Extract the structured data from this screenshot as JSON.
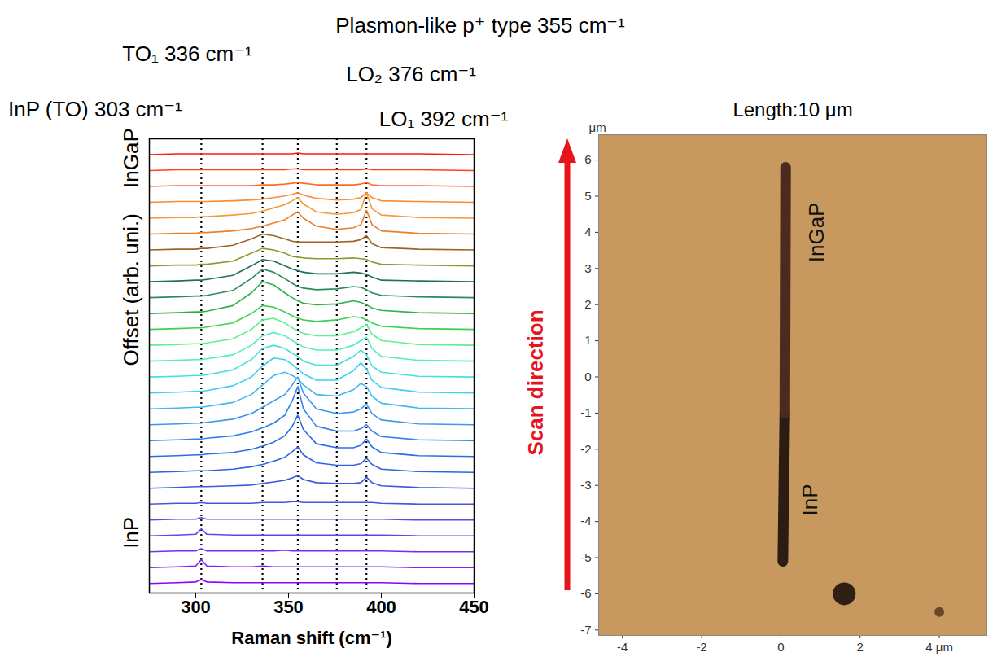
{
  "chart_data": [
    {
      "type": "line",
      "xlabel": "Raman shift (cm⁻¹)",
      "ylabel": "Offset (arb. uni.)",
      "xlim": [
        275,
        450
      ],
      "xticks": [
        300,
        350,
        400,
        450
      ],
      "ylim": [
        -0.6,
        28
      ],
      "tick_labels": "x",
      "annotations": [
        {
          "text": "Plasmon-like p⁺ type 355 cm⁻¹",
          "x": 355
        },
        {
          "text": "TO₁ 336 cm⁻¹",
          "x": 336
        },
        {
          "text": "LO₂ 376 cm⁻¹",
          "x": 376
        },
        {
          "text": "InP (TO) 303 cm⁻¹",
          "x": 303
        },
        {
          "text": "LO₁ 392 cm⁻¹",
          "x": 392
        }
      ],
      "labels": [
        {
          "text": "InP",
          "y": 2.2
        },
        {
          "text": "InGaP",
          "y": 24.9
        }
      ],
      "x": [
        275,
        290,
        300,
        303,
        306,
        320,
        330,
        336,
        342,
        348,
        352,
        355,
        358,
        365,
        376,
        385,
        389,
        392,
        395,
        400,
        420,
        450
      ],
      "series": [
        {
          "color": "#8f00ff",
          "values": [
            0,
            0.05,
            0.1,
            0.25,
            0.1,
            0.05,
            0.05,
            0.05,
            0.05,
            0.05,
            0.05,
            0.05,
            0.05,
            0.05,
            0.05,
            0.05,
            0.05,
            0.05,
            0.05,
            0.05,
            0,
            0
          ]
        },
        {
          "color": "#7f1fff",
          "values": [
            1,
            1.05,
            1.1,
            1.5,
            1.1,
            1.05,
            1.05,
            1.1,
            1.05,
            1.05,
            1.05,
            1.05,
            1.05,
            1.05,
            1.05,
            1.05,
            1.05,
            1.05,
            1.05,
            1.05,
            1,
            1
          ]
        },
        {
          "color": "#7030f0",
          "values": [
            2,
            2.05,
            2.05,
            2.2,
            2.05,
            2.05,
            2.05,
            2.05,
            2.05,
            2.1,
            2.05,
            2.05,
            2.05,
            2.05,
            2.05,
            2.05,
            2.05,
            2.05,
            2.05,
            2.05,
            2,
            2
          ]
        },
        {
          "color": "#6a3ff0",
          "values": [
            3,
            3.05,
            3.1,
            3.45,
            3.1,
            3.05,
            3.05,
            3.05,
            3.05,
            3.05,
            3.05,
            3.05,
            3.05,
            3.05,
            3.05,
            3.05,
            3.05,
            3.05,
            3.05,
            3.05,
            3,
            3
          ]
        },
        {
          "color": "#5a48e8",
          "values": [
            4,
            4.05,
            4.05,
            4.15,
            4.05,
            4.05,
            4.05,
            4.05,
            4.05,
            4.05,
            4.05,
            4.05,
            4.05,
            4.05,
            4.05,
            4.05,
            4.05,
            4.05,
            4.05,
            4.05,
            4,
            4
          ]
        },
        {
          "color": "#4a50e0",
          "values": [
            5,
            5.05,
            5.05,
            5.1,
            5.05,
            5.05,
            5.05,
            5.1,
            5.1,
            5.1,
            5.15,
            5.15,
            5.1,
            5.1,
            5.1,
            5.1,
            5.1,
            5.1,
            5.1,
            5.05,
            5,
            5
          ]
        },
        {
          "color": "#3a58e0",
          "values": [
            6,
            6.05,
            6.1,
            6.1,
            6.1,
            6.15,
            6.2,
            6.3,
            6.4,
            6.5,
            6.65,
            6.8,
            6.55,
            6.35,
            6.3,
            6.3,
            6.35,
            6.7,
            6.35,
            6.15,
            6.05,
            6
          ]
        },
        {
          "color": "#2f62e6",
          "values": [
            7,
            7.05,
            7.1,
            7.1,
            7.1,
            7.2,
            7.35,
            7.5,
            7.7,
            7.95,
            8.3,
            8.6,
            8.1,
            7.6,
            7.45,
            7.45,
            7.55,
            7.9,
            7.5,
            7.2,
            7.05,
            7
          ]
        },
        {
          "color": "#2a6cea",
          "values": [
            8,
            8.05,
            8.1,
            8.1,
            8.15,
            8.25,
            8.45,
            8.65,
            8.9,
            9.3,
            9.9,
            10.6,
            9.7,
            8.8,
            8.55,
            8.55,
            8.7,
            9.1,
            8.6,
            8.25,
            8.05,
            8
          ]
        },
        {
          "color": "#3080f0",
          "values": [
            9,
            9.05,
            9.1,
            9.1,
            9.15,
            9.3,
            9.55,
            9.8,
            10.1,
            10.6,
            11.5,
            12.4,
            11.0,
            9.9,
            9.6,
            9.6,
            9.75,
            10.0,
            9.6,
            9.25,
            9.05,
            9
          ]
        },
        {
          "color": "#3a98f2",
          "values": [
            10,
            10.05,
            10.1,
            10.1,
            10.15,
            10.35,
            10.7,
            11.1,
            11.5,
            11.9,
            12.5,
            13.0,
            12.0,
            11.0,
            10.7,
            10.8,
            11.0,
            11.3,
            10.7,
            10.3,
            10.05,
            10
          ]
        },
        {
          "color": "#40b8f4",
          "values": [
            11,
            11.05,
            11.1,
            11.1,
            11.15,
            11.4,
            11.9,
            12.5,
            13.1,
            13.3,
            13.1,
            12.9,
            12.5,
            11.9,
            11.8,
            12.2,
            12.6,
            12.4,
            11.8,
            11.35,
            11.05,
            11
          ]
        },
        {
          "color": "#40d0f0",
          "values": [
            12,
            12.05,
            12.1,
            12.1,
            12.15,
            12.45,
            13.0,
            13.7,
            14.2,
            14.1,
            13.8,
            13.5,
            13.2,
            12.8,
            12.8,
            13.4,
            13.9,
            13.5,
            12.8,
            12.35,
            12.05,
            12
          ]
        },
        {
          "color": "#44e0e0",
          "values": [
            13,
            13.05,
            13.1,
            13.1,
            13.15,
            13.45,
            14.1,
            14.8,
            15.0,
            14.8,
            14.5,
            14.3,
            14.0,
            13.75,
            13.75,
            14.3,
            14.7,
            14.4,
            13.7,
            13.3,
            13.05,
            13
          ]
        },
        {
          "color": "#50eec0",
          "values": [
            14,
            14.05,
            14.1,
            14.1,
            14.15,
            14.4,
            15.0,
            15.6,
            15.8,
            15.6,
            15.3,
            15.1,
            14.9,
            14.7,
            14.7,
            15.0,
            15.3,
            15.5,
            14.8,
            14.3,
            14.05,
            14
          ]
        },
        {
          "color": "#5cf090",
          "values": [
            15,
            15.05,
            15.1,
            15.1,
            15.15,
            15.4,
            16.0,
            16.6,
            16.7,
            16.4,
            16.1,
            15.9,
            15.75,
            15.6,
            15.6,
            15.85,
            16.1,
            16.3,
            15.7,
            15.3,
            15.05,
            15
          ]
        },
        {
          "color": "#3cd050",
          "values": [
            16,
            16.05,
            16.1,
            16.1,
            16.15,
            16.4,
            17.0,
            17.5,
            17.4,
            17.1,
            16.85,
            16.7,
            16.6,
            16.5,
            16.6,
            16.8,
            16.75,
            16.6,
            16.4,
            16.2,
            16.05,
            16
          ]
        },
        {
          "color": "#30b048",
          "values": [
            17,
            17.05,
            17.1,
            17.1,
            17.15,
            17.5,
            18.3,
            19.0,
            18.8,
            18.3,
            18.0,
            17.8,
            17.65,
            17.55,
            17.6,
            17.8,
            17.7,
            17.55,
            17.35,
            17.2,
            17.05,
            17
          ]
        },
        {
          "color": "#2a8a5a",
          "values": [
            18,
            18.05,
            18.1,
            18.1,
            18.15,
            18.45,
            19.2,
            19.8,
            19.6,
            19.2,
            18.9,
            18.7,
            18.6,
            18.5,
            18.55,
            18.7,
            18.65,
            18.5,
            18.3,
            18.15,
            18.05,
            18
          ]
        },
        {
          "color": "#1f6f5f",
          "values": [
            19,
            19.05,
            19.1,
            19.1,
            19.15,
            19.4,
            20.0,
            20.4,
            20.3,
            20.0,
            19.8,
            19.7,
            19.6,
            19.5,
            19.5,
            19.6,
            19.55,
            19.45,
            19.3,
            19.1,
            19.05,
            19
          ]
        },
        {
          "color": "#8a9a30",
          "values": [
            20,
            20.05,
            20.05,
            20.1,
            20.1,
            20.3,
            20.8,
            21.1,
            21.0,
            20.8,
            20.6,
            20.55,
            20.5,
            20.45,
            20.45,
            20.5,
            20.45,
            20.4,
            20.25,
            20.1,
            20.05,
            20
          ]
        },
        {
          "color": "#9a6424",
          "values": [
            21,
            21.05,
            21.05,
            21.1,
            21.1,
            21.3,
            21.7,
            22.0,
            21.9,
            21.7,
            21.55,
            21.5,
            21.5,
            21.5,
            21.5,
            21.55,
            21.65,
            21.9,
            21.4,
            21.15,
            21.05,
            21
          ]
        },
        {
          "color": "#e8802c",
          "values": [
            22,
            22.05,
            22.05,
            22.1,
            22.1,
            22.2,
            22.35,
            22.5,
            22.7,
            22.9,
            23.2,
            23.4,
            23.0,
            22.5,
            22.3,
            22.4,
            22.6,
            23.5,
            22.6,
            22.2,
            22.05,
            22
          ]
        },
        {
          "color": "#f59a3a",
          "values": [
            23,
            23.05,
            23.05,
            23.1,
            23.1,
            23.2,
            23.3,
            23.45,
            23.65,
            23.85,
            24.1,
            24.3,
            23.9,
            23.4,
            23.25,
            23.35,
            23.55,
            24.6,
            23.6,
            23.2,
            23.05,
            23
          ]
        },
        {
          "color": "#ff8a30",
          "values": [
            24,
            24.05,
            24.05,
            24.05,
            24.05,
            24.1,
            24.15,
            24.2,
            24.3,
            24.4,
            24.5,
            24.6,
            24.45,
            24.25,
            24.15,
            24.2,
            24.3,
            24.6,
            24.3,
            24.1,
            24.05,
            24
          ]
        },
        {
          "color": "#ff6a28",
          "values": [
            25,
            25.05,
            25.05,
            25.05,
            25.05,
            25.05,
            25.05,
            25.1,
            25.1,
            25.15,
            25.2,
            25.25,
            25.2,
            25.1,
            25.1,
            25.1,
            25.15,
            25.25,
            25.1,
            25.05,
            25.05,
            25
          ]
        },
        {
          "color": "#ff4020",
          "values": [
            26,
            26.05,
            26.05,
            26.05,
            26.05,
            26.05,
            26.05,
            26.05,
            26.05,
            26.05,
            26.1,
            26.1,
            26.05,
            26.05,
            26.05,
            26.05,
            26.05,
            26.1,
            26.05,
            26.05,
            26.05,
            26
          ]
        },
        {
          "color": "#ff1a10",
          "values": [
            27,
            27.05,
            27.05,
            27.05,
            27.05,
            27.05,
            27.05,
            27.05,
            27.05,
            27.05,
            27.05,
            27.1,
            27.05,
            27.05,
            27.05,
            27.05,
            27.05,
            27.05,
            27.05,
            27.05,
            27.05,
            27
          ]
        }
      ]
    },
    {
      "type": "image",
      "title": "Length:10 μm",
      "ylabel": "μm",
      "xlim": [
        -4.6,
        5.2
      ],
      "xticks": [
        -4,
        -2,
        0,
        2,
        {
          "value": 4,
          "label": "4 μm"
        }
      ],
      "ylim": [
        -7.15,
        6.7
      ],
      "yticks": [
        -7,
        -6,
        -5,
        -4,
        -3,
        -2,
        -1,
        0,
        1,
        2,
        3,
        4,
        5,
        6
      ],
      "color": "#c7995e",
      "stripe": [
        {
          "x": [
            0.05,
            0.1
          ],
          "y": [
            -5.1,
            -1.0
          ],
          "color": "#2b1d14"
        },
        {
          "x": [
            0.1,
            0.12
          ],
          "y": [
            -1.0,
            5.8
          ],
          "color": "#4b2a1f"
        }
      ],
      "spots": [
        {
          "x": 1.6,
          "y": -6.0,
          "color": "#2f1f15"
        },
        {
          "x": 4.0,
          "y": -6.5,
          "color": "#6a4528"
        }
      ],
      "annotations": [
        {
          "text": "InGaP",
          "x": 0.9,
          "y": 4.0
        },
        {
          "text": "InP",
          "x": 0.75,
          "y": -3.4
        }
      ],
      "scan_label": "Scan direction"
    }
  ]
}
